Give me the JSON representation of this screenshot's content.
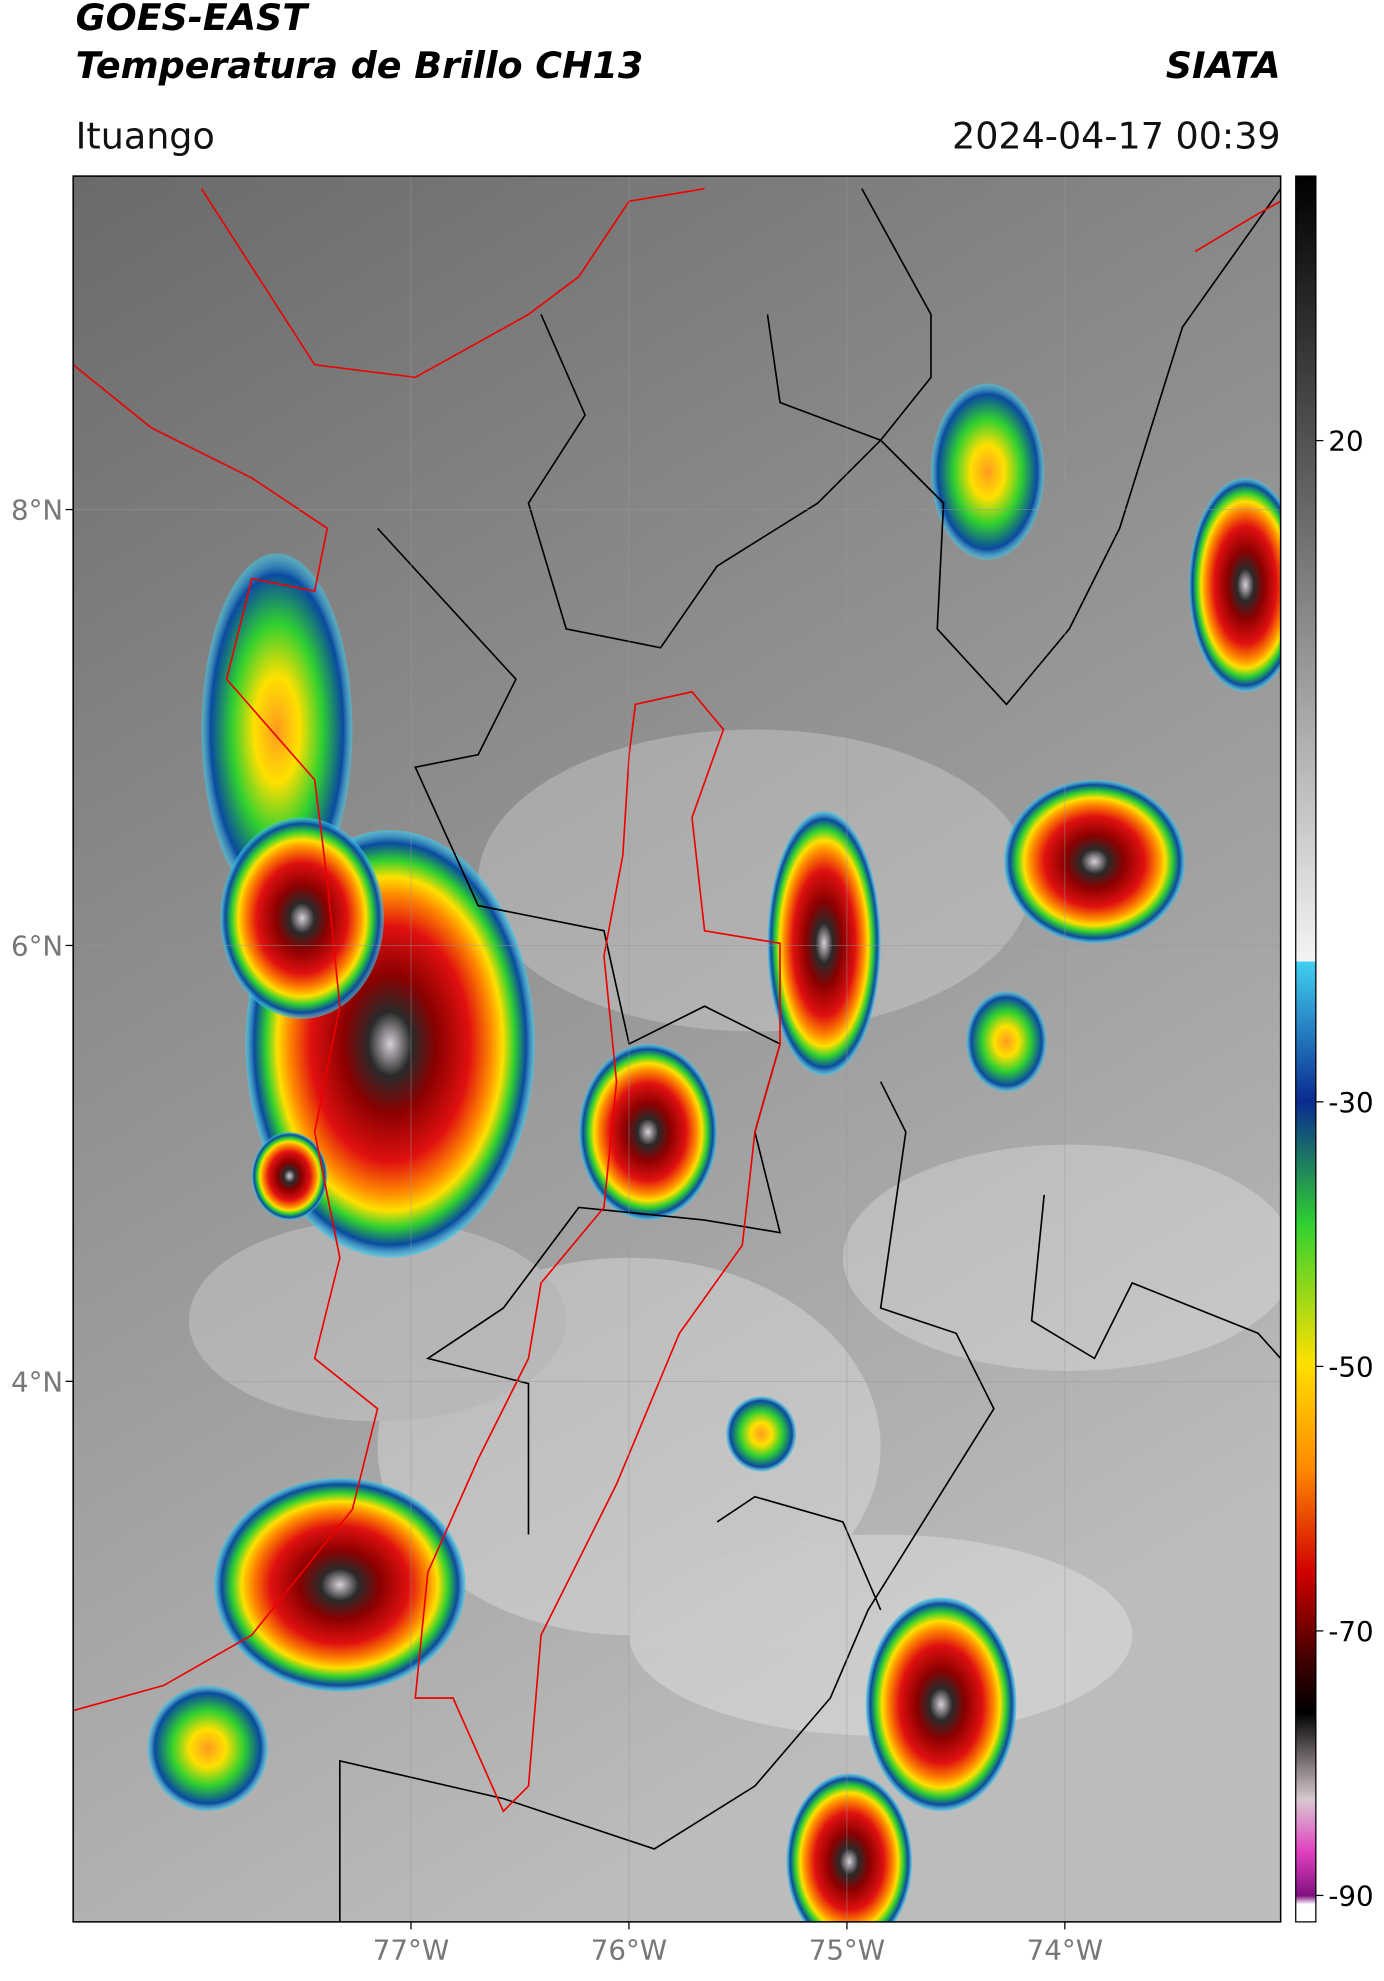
{
  "header": {
    "title_line1": "GOES-EAST",
    "title_line2": "Temperatura de Brillo CH13",
    "agency": "SIATA",
    "location": "Ituango",
    "timestamp": "2024-04-17 00:39"
  },
  "map": {
    "xlim": [
      -78.55,
      -73.01
    ],
    "ylim": [
      1.52,
      9.53
    ],
    "xticks": [
      {
        "value": -77,
        "label": "77°W"
      },
      {
        "value": -76,
        "label": "76°W"
      },
      {
        "value": -75,
        "label": "75°W"
      },
      {
        "value": -74,
        "label": "74°W"
      }
    ],
    "yticks": [
      {
        "value": 4,
        "label": "4°N"
      },
      {
        "value": 6,
        "label": "6°N"
      },
      {
        "value": 8,
        "label": "8°N"
      }
    ],
    "grid": true
  },
  "colorbar": {
    "lim": [
      -92,
      40
    ],
    "ticks": [
      20,
      -30,
      -50,
      -70,
      -90
    ]
  }
}
